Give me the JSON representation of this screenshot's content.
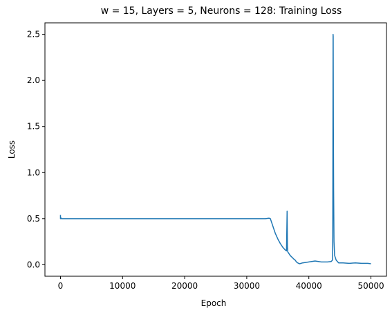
{
  "chart_data": {
    "type": "line",
    "title": "w = 15, Layers = 5, Neurons = 128: Training Loss",
    "xlabel": "Epoch",
    "ylabel": "Loss",
    "xlim": [
      -2500,
      52500
    ],
    "ylim": [
      -0.125,
      2.625
    ],
    "x_ticks": [
      0,
      10000,
      20000,
      30000,
      40000,
      50000
    ],
    "x_tick_labels": [
      "0",
      "10000",
      "20000",
      "30000",
      "40000",
      "50000"
    ],
    "y_ticks": [
      0.0,
      0.5,
      1.0,
      1.5,
      2.0,
      2.5
    ],
    "y_tick_labels": [
      "0.0",
      "0.5",
      "1.0",
      "1.5",
      "2.0",
      "2.5"
    ],
    "grid": false,
    "legend": "none",
    "series": [
      {
        "color": "#1f77b4",
        "x": [
          0,
          1,
          60,
          150,
          300,
          1000,
          5000,
          10000,
          15000,
          20000,
          25000,
          30000,
          33000,
          33600,
          33800,
          34000,
          34300,
          34600,
          35000,
          35400,
          35800,
          36200,
          36400,
          36500,
          36550,
          36600,
          36700,
          37000,
          37300,
          37600,
          37800,
          38000,
          38200,
          38500,
          39000,
          40000,
          41000,
          42000,
          43000,
          43600,
          43800,
          43850,
          43900,
          43920,
          43950,
          43990,
          44050,
          44150,
          44400,
          44800,
          45500,
          46500,
          47500,
          48500,
          49500,
          50000
        ],
        "y": [
          0.54,
          0.5,
          0.51,
          0.5,
          0.5,
          0.5,
          0.5,
          0.5,
          0.5,
          0.5,
          0.5,
          0.5,
          0.5,
          0.505,
          0.5,
          0.46,
          0.4,
          0.34,
          0.28,
          0.23,
          0.19,
          0.16,
          0.15,
          0.58,
          0.2,
          0.14,
          0.13,
          0.1,
          0.08,
          0.06,
          0.05,
          0.03,
          0.02,
          0.01,
          0.02,
          0.03,
          0.04,
          0.03,
          0.03,
          0.035,
          0.05,
          0.3,
          2.5,
          2.48,
          1.5,
          0.8,
          0.25,
          0.1,
          0.05,
          0.02,
          0.02,
          0.015,
          0.02,
          0.015,
          0.015,
          0.01
        ]
      }
    ]
  }
}
